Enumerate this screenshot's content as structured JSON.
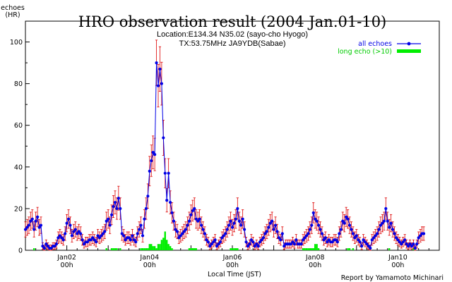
{
  "chart_data": {
    "type": "line",
    "title": "HRO observation result (2004 Jan.01-10)",
    "subtitle_lines": [
      "Location:E134.34 N35.02 (sayo-cho Hyogo)",
      "TX:53.75MHz JA9YDB(Sabae)"
    ],
    "ylabel_lines": [
      "echoes",
      "(HR)"
    ],
    "xlabel": "Local Time (JST)",
    "credit": "Report by Yamamoto Michinari",
    "ylim": [
      0,
      110
    ],
    "xlim": [
      0,
      240
    ],
    "yticks": [
      0,
      20,
      40,
      60,
      80,
      100
    ],
    "xticks": [
      {
        "x": 24,
        "top": "Jan02",
        "bottom": "00h"
      },
      {
        "x": 72,
        "top": "Jan04",
        "bottom": "00h"
      },
      {
        "x": 120,
        "top": "Jan06",
        "bottom": "00h"
      },
      {
        "x": 168,
        "top": "Jan08",
        "bottom": "00h"
      },
      {
        "x": 216,
        "top": "Jan10",
        "bottom": "00h"
      }
    ],
    "legend_position": "top-right",
    "colors": {
      "all_echoes": "#0000e6",
      "error": "#dd0000",
      "long_echo": "#00ee00"
    },
    "series": [
      {
        "name": "all echoes",
        "x_start": 0,
        "x_step": 1,
        "values": [
          10,
          11,
          12,
          14,
          15,
          10,
          14,
          16,
          11,
          12,
          2,
          1,
          3,
          2,
          1,
          1,
          2,
          2,
          3,
          6,
          7,
          6,
          5,
          8,
          13,
          15,
          12,
          7,
          9,
          10,
          8,
          9,
          8,
          5,
          3,
          4,
          4,
          5,
          5,
          6,
          5,
          4,
          7,
          6,
          7,
          8,
          9,
          14,
          15,
          12,
          17,
          21,
          23,
          20,
          25,
          20,
          8,
          7,
          5,
          6,
          6,
          5,
          7,
          5,
          4,
          8,
          10,
          12,
          7,
          15,
          20,
          26,
          38,
          43,
          47,
          46,
          90,
          79,
          87,
          80,
          54,
          37,
          24,
          37,
          23,
          18,
          14,
          10,
          9,
          6,
          7,
          8,
          9,
          10,
          12,
          14,
          17,
          19,
          20,
          15,
          14,
          15,
          12,
          10,
          8,
          5,
          4,
          2,
          3,
          4,
          5,
          2,
          3,
          4,
          6,
          7,
          8,
          10,
          12,
          14,
          11,
          13,
          15,
          20,
          14,
          12,
          15,
          10,
          4,
          2,
          3,
          5,
          4,
          2,
          3,
          2,
          4,
          5,
          6,
          8,
          9,
          11,
          13,
          14,
          10,
          12,
          9,
          6,
          5,
          8,
          2,
          3,
          3,
          3,
          3,
          4,
          3,
          5,
          3,
          3,
          3,
          5,
          6,
          7,
          8,
          10,
          12,
          18,
          15,
          14,
          12,
          10,
          8,
          5,
          6,
          4,
          5,
          4,
          4,
          5,
          5,
          4,
          8,
          10,
          14,
          13,
          16,
          15,
          12,
          10,
          8,
          6,
          7,
          5,
          4,
          2,
          5,
          4,
          3,
          2,
          1,
          5,
          6,
          7,
          8,
          10,
          12,
          13,
          14,
          20,
          14,
          11,
          13,
          10,
          8,
          6,
          5,
          4,
          3,
          4,
          5,
          3,
          2,
          3,
          2,
          3,
          1,
          3,
          6,
          7,
          8,
          8
        ]
      },
      {
        "name": "long echo (>10)",
        "type": "bar",
        "x_start": 0,
        "x_step": 1,
        "values": [
          0,
          0,
          0,
          0,
          0,
          1,
          0,
          0,
          0,
          0,
          0,
          0,
          0,
          0,
          0,
          0,
          0,
          0,
          0,
          0,
          0,
          0,
          0,
          0,
          0,
          0,
          0,
          0,
          0,
          0,
          0,
          0,
          0,
          0,
          0,
          0,
          0,
          0,
          0,
          0,
          0,
          0,
          0,
          0,
          0,
          0,
          0,
          1,
          0,
          0,
          1,
          1,
          1,
          1,
          0,
          1,
          0,
          0,
          0,
          0,
          0,
          0,
          0,
          0,
          0,
          0,
          0,
          1,
          1,
          1,
          1,
          1,
          3,
          3,
          2,
          2,
          1,
          3,
          3,
          5,
          6,
          9,
          5,
          3,
          2,
          1,
          0,
          0,
          0,
          0,
          0,
          0,
          0,
          0,
          0,
          1,
          1,
          1,
          1,
          1,
          0,
          0,
          0,
          0,
          0,
          0,
          0,
          0,
          0,
          0,
          0,
          0,
          0,
          0,
          0,
          0,
          0,
          0,
          0,
          1,
          1,
          1,
          1,
          1,
          0,
          0,
          0,
          0,
          0,
          0,
          0,
          0,
          0,
          0,
          0,
          0,
          0,
          0,
          0,
          0,
          0,
          0,
          0,
          0,
          0,
          0,
          0,
          0,
          0,
          0,
          0,
          0,
          0,
          0,
          0,
          0,
          0,
          0,
          0,
          0,
          0,
          1,
          1,
          1,
          1,
          1,
          1,
          1,
          3,
          3,
          1,
          0,
          0,
          0,
          0,
          0,
          0,
          0,
          0,
          0,
          0,
          0,
          0,
          0,
          0,
          0,
          0,
          1,
          1,
          0,
          1,
          0,
          0,
          0,
          0,
          0,
          0,
          0,
          0,
          0,
          0,
          0,
          0,
          0,
          0,
          0,
          0,
          0,
          0,
          0,
          0,
          1,
          0,
          0,
          0,
          0,
          0,
          0,
          0,
          0,
          0,
          0,
          0,
          0,
          0,
          1,
          0,
          0,
          0,
          0,
          0,
          0,
          0,
          0,
          0,
          0,
          0,
          0,
          0,
          0
        ]
      }
    ]
  }
}
